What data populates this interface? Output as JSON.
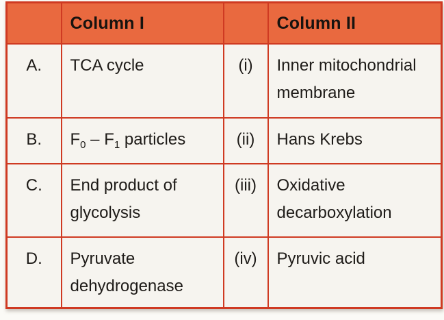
{
  "table": {
    "header": {
      "corner": "",
      "col1": "Column I",
      "num": "",
      "col2": "Column II"
    },
    "rows": [
      {
        "letter": "A.",
        "item": "TCA cycle",
        "num": "(i)",
        "match": "Inner mitochondrial membrane"
      },
      {
        "letter": "B.",
        "item_parts": {
          "base1": "F",
          "sub1": "0",
          "mid": " – F",
          "sub2": "1",
          "rest": " particles"
        },
        "num": "(ii)",
        "match": "Hans Krebs"
      },
      {
        "letter": "C.",
        "item": "End product of glycolysis",
        "num": "(iii)",
        "match": "Oxidative decarboxylation"
      },
      {
        "letter": "D.",
        "item": "Pyruvate dehydrogenase",
        "num": "(iv)",
        "match": "Pyruvic acid"
      }
    ],
    "colors": {
      "header_bg": "#e9693f",
      "border": "#cf3a22",
      "cell_bg": "#f6f4ef"
    }
  }
}
